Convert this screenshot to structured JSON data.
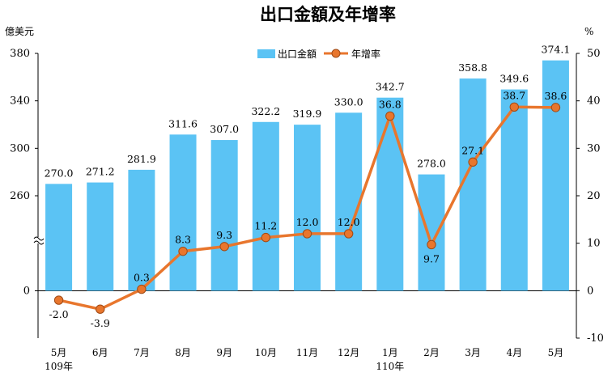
{
  "chart_data": {
    "type": "bar",
    "title": "出口金額及年增率",
    "left_unit": "億美元",
    "right_unit": "%",
    "categories": [
      "5月",
      "6月",
      "7月",
      "8月",
      "9月",
      "10月",
      "11月",
      "12月",
      "1月",
      "2月",
      "3月",
      "4月",
      "5月"
    ],
    "category_sublabels": [
      "109年",
      "",
      "",
      "",
      "",
      "",
      "",
      "",
      "110年",
      "",
      "",
      "",
      ""
    ],
    "series": [
      {
        "name": "出口金額",
        "type": "bar",
        "axis": "left",
        "color": "#5BC3F4",
        "values": [
          270.0,
          271.2,
          281.9,
          311.6,
          307.0,
          322.2,
          319.9,
          330.0,
          342.7,
          278.0,
          358.8,
          349.6,
          374.1
        ],
        "labels": [
          "270.0",
          "271.2",
          "281.9",
          "311.6",
          "307.0",
          "322.2",
          "319.9",
          "330.0",
          "342.7",
          "278.0",
          "358.8",
          "349.6",
          "374.1"
        ]
      },
      {
        "name": "年增率",
        "type": "line",
        "axis": "right",
        "color": "#E8762D",
        "values": [
          -2.0,
          -3.9,
          0.3,
          8.3,
          9.3,
          11.2,
          12.0,
          12.0,
          36.8,
          9.7,
          27.1,
          38.7,
          38.6
        ],
        "labels": [
          "-2.0",
          "-3.9",
          "0.3",
          "8.3",
          "9.3",
          "11.2",
          "12.0",
          "12.0",
          "36.8",
          "9.7",
          "27.1",
          "38.7",
          "38.6"
        ]
      }
    ],
    "left_axis": {
      "broken": true,
      "ticks": [
        0,
        260,
        300,
        340,
        380
      ],
      "tick_labels": [
        "0",
        "260",
        "300",
        "340",
        "380"
      ]
    },
    "right_axis": {
      "ylim": [
        -10,
        50
      ],
      "ticks": [
        -10,
        0,
        10,
        20,
        30,
        40,
        50
      ],
      "tick_labels": [
        "-10",
        "0",
        "10",
        "20",
        "30",
        "40",
        "50"
      ]
    },
    "legend": {
      "position": "top-center",
      "entries": [
        "出口金額",
        "年增率"
      ]
    },
    "grid": false
  }
}
